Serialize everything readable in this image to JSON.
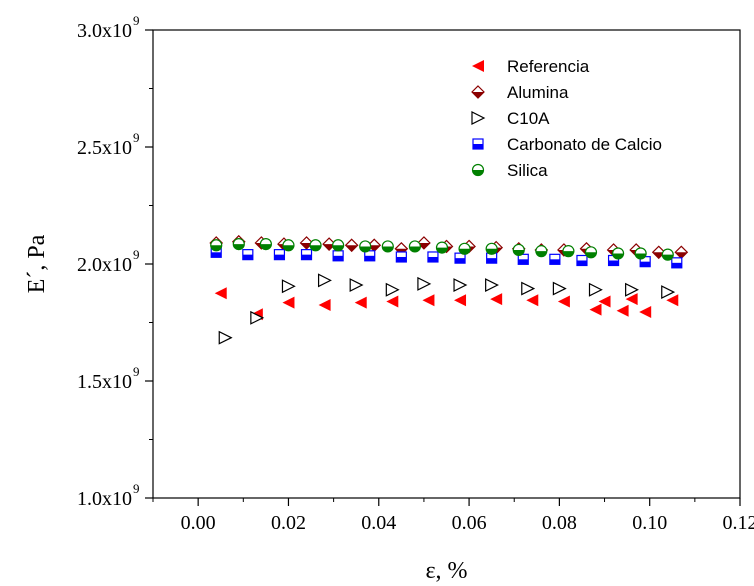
{
  "chart_data": {
    "type": "scatter",
    "xlabel": "ε, %",
    "ylabel": "E´, Pa",
    "xlim": [
      -0.01,
      0.12
    ],
    "ylim": [
      1000000000.0,
      3000000000.0
    ],
    "x_ticks": [
      0.0,
      0.02,
      0.04,
      0.06,
      0.08,
      0.1,
      0.12
    ],
    "x_tick_labels": [
      "0.00",
      "0.02",
      "0.04",
      "0.06",
      "0.08",
      "0.10",
      "0.12"
    ],
    "y_ticks": [
      1000000000.0,
      1500000000.0,
      2000000000.0,
      2500000000.0,
      3000000000.0
    ],
    "y_tick_labels": [
      {
        "mantissa": "1.0x10",
        "exp": "9"
      },
      {
        "mantissa": "1.5x10",
        "exp": "9"
      },
      {
        "mantissa": "2.0x10",
        "exp": "9"
      },
      {
        "mantissa": "2.5x10",
        "exp": "9"
      },
      {
        "mantissa": "3.0x10",
        "exp": "9"
      }
    ],
    "grid": false,
    "legend_position": "top-right",
    "series": [
      {
        "name": "Referencia",
        "marker": "triangle-left",
        "color": "#ff0000",
        "points": [
          [
            0.005,
            1875000000.0
          ],
          [
            0.013,
            1785000000.0
          ],
          [
            0.02,
            1835000000.0
          ],
          [
            0.028,
            1825000000.0
          ],
          [
            0.036,
            1835000000.0
          ],
          [
            0.043,
            1840000000.0
          ],
          [
            0.051,
            1845000000.0
          ],
          [
            0.058,
            1845000000.0
          ],
          [
            0.066,
            1850000000.0
          ],
          [
            0.074,
            1845000000.0
          ],
          [
            0.081,
            1840000000.0
          ],
          [
            0.088,
            1805000000.0
          ],
          [
            0.09,
            1840000000.0
          ],
          [
            0.094,
            1800000000.0
          ],
          [
            0.096,
            1850000000.0
          ],
          [
            0.099,
            1795000000.0
          ],
          [
            0.105,
            1845000000.0
          ]
        ]
      },
      {
        "name": "Alumina",
        "marker": "diamond-half",
        "color": "#8b0000",
        "points": [
          [
            0.004,
            2090000000.0
          ],
          [
            0.009,
            2095000000.0
          ],
          [
            0.014,
            2090000000.0
          ],
          [
            0.019,
            2085000000.0
          ],
          [
            0.024,
            2090000000.0
          ],
          [
            0.029,
            2085000000.0
          ],
          [
            0.034,
            2080000000.0
          ],
          [
            0.039,
            2080000000.0
          ],
          [
            0.045,
            2065000000.0
          ],
          [
            0.05,
            2090000000.0
          ],
          [
            0.055,
            2075000000.0
          ],
          [
            0.06,
            2075000000.0
          ],
          [
            0.066,
            2070000000.0
          ],
          [
            0.071,
            2065000000.0
          ],
          [
            0.076,
            2060000000.0
          ],
          [
            0.081,
            2060000000.0
          ],
          [
            0.086,
            2065000000.0
          ],
          [
            0.092,
            2060000000.0
          ],
          [
            0.097,
            2060000000.0
          ],
          [
            0.102,
            2050000000.0
          ],
          [
            0.107,
            2050000000.0
          ]
        ]
      },
      {
        "name": "C10A",
        "marker": "triangle-right-open",
        "color": "#000000",
        "points": [
          [
            0.006,
            1685000000.0
          ],
          [
            0.013,
            1770000000.0
          ],
          [
            0.02,
            1905000000.0
          ],
          [
            0.028,
            1930000000.0
          ],
          [
            0.035,
            1910000000.0
          ],
          [
            0.043,
            1890000000.0
          ],
          [
            0.05,
            1915000000.0
          ],
          [
            0.058,
            1910000000.0
          ],
          [
            0.065,
            1910000000.0
          ],
          [
            0.073,
            1895000000.0
          ],
          [
            0.08,
            1895000000.0
          ],
          [
            0.088,
            1890000000.0
          ],
          [
            0.096,
            1890000000.0
          ],
          [
            0.104,
            1880000000.0
          ]
        ]
      },
      {
        "name": "Carbonato de Calcio",
        "marker": "square-half",
        "color": "#0000ff",
        "points": [
          [
            0.004,
            2050000000.0
          ],
          [
            0.011,
            2040000000.0
          ],
          [
            0.018,
            2040000000.0
          ],
          [
            0.024,
            2040000000.0
          ],
          [
            0.031,
            2035000000.0
          ],
          [
            0.038,
            2035000000.0
          ],
          [
            0.045,
            2030000000.0
          ],
          [
            0.052,
            2030000000.0
          ],
          [
            0.058,
            2025000000.0
          ],
          [
            0.065,
            2025000000.0
          ],
          [
            0.072,
            2020000000.0
          ],
          [
            0.079,
            2020000000.0
          ],
          [
            0.085,
            2015000000.0
          ],
          [
            0.092,
            2015000000.0
          ],
          [
            0.099,
            2010000000.0
          ],
          [
            0.106,
            2005000000.0
          ]
        ]
      },
      {
        "name": "Silica",
        "marker": "circle-half",
        "color": "#008000",
        "points": [
          [
            0.004,
            2080000000.0
          ],
          [
            0.009,
            2085000000.0
          ],
          [
            0.015,
            2085000000.0
          ],
          [
            0.02,
            2080000000.0
          ],
          [
            0.026,
            2080000000.0
          ],
          [
            0.031,
            2080000000.0
          ],
          [
            0.037,
            2075000000.0
          ],
          [
            0.042,
            2075000000.0
          ],
          [
            0.048,
            2075000000.0
          ],
          [
            0.054,
            2070000000.0
          ],
          [
            0.059,
            2065000000.0
          ],
          [
            0.065,
            2065000000.0
          ],
          [
            0.071,
            2060000000.0
          ],
          [
            0.076,
            2055000000.0
          ],
          [
            0.082,
            2055000000.0
          ],
          [
            0.087,
            2050000000.0
          ],
          [
            0.093,
            2045000000.0
          ],
          [
            0.098,
            2045000000.0
          ],
          [
            0.104,
            2040000000.0
          ]
        ]
      }
    ]
  }
}
